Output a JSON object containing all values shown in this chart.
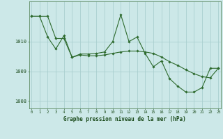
{
  "line1_x": [
    0,
    1,
    2,
    3,
    4,
    5,
    6,
    7,
    8,
    9,
    10,
    11,
    12,
    13,
    14,
    15,
    16,
    17,
    18,
    19,
    20,
    21,
    22,
    23
  ],
  "line1_y": [
    1010.85,
    1010.85,
    1010.15,
    1009.75,
    1010.2,
    1009.47,
    1009.58,
    1009.58,
    1009.6,
    1009.65,
    1010.0,
    1010.9,
    1010.0,
    1010.15,
    1009.6,
    1009.15,
    1009.35,
    1008.75,
    1008.5,
    1008.3,
    1008.3,
    1008.45,
    1009.1,
    1009.1
  ],
  "line2_x": [
    0,
    1,
    2,
    3,
    4,
    5,
    6,
    7,
    8,
    9,
    10,
    11,
    12,
    13,
    14,
    15,
    16,
    17,
    18,
    19,
    20,
    21,
    22,
    23
  ],
  "line2_y": [
    1010.85,
    1010.85,
    1010.85,
    1010.1,
    1010.1,
    1009.47,
    1009.55,
    1009.52,
    1009.52,
    1009.55,
    1009.6,
    1009.65,
    1009.68,
    1009.68,
    1009.65,
    1009.6,
    1009.48,
    1009.32,
    1009.2,
    1009.05,
    1008.92,
    1008.82,
    1008.78,
    1009.1
  ],
  "line_color": "#2d6a2d",
  "marker": "D",
  "markersize": 1.8,
  "linewidth": 0.8,
  "bg_color": "#cce8e8",
  "grid_color": "#aacfcf",
  "xlabel": "Graphe pression niveau de la mer (hPa)",
  "xlabel_color": "#1a4a1a",
  "tick_color": "#1a4a1a",
  "ylim": [
    1007.75,
    1011.35
  ],
  "yticks": [
    1008,
    1009,
    1010
  ],
  "xticks": [
    0,
    1,
    2,
    3,
    4,
    5,
    6,
    7,
    8,
    9,
    10,
    11,
    12,
    13,
    14,
    15,
    16,
    17,
    18,
    19,
    20,
    21,
    22,
    23
  ],
  "xlim": [
    -0.3,
    23.3
  ]
}
